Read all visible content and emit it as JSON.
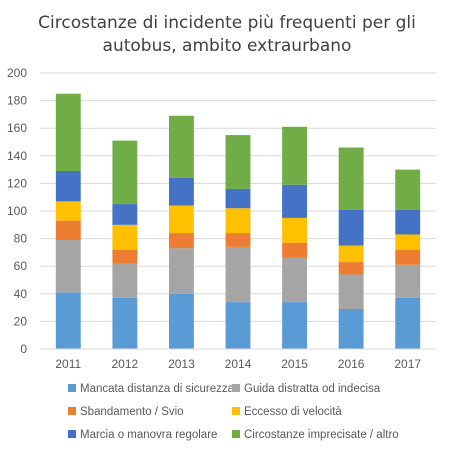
{
  "chart_data": {
    "type": "bar",
    "stacked": true,
    "title": "Circostanze di incidente più frequenti per gli autobus, ambito extraurbano",
    "title_lines": [
      "Circostanze di incidente più frequenti per gli",
      "autobus, ambito extraurbano"
    ],
    "xlabel": "",
    "ylabel": "",
    "ylim": [
      0,
      200
    ],
    "yticks": [
      0,
      20,
      40,
      60,
      80,
      100,
      120,
      140,
      160,
      180,
      200
    ],
    "grid": true,
    "legend_position": "bottom",
    "categories": [
      "2011",
      "2012",
      "2013",
      "2014",
      "2015",
      "2016",
      "2017"
    ],
    "series": [
      {
        "name": "Mancata distanza di sicurezza",
        "color": "#5B9BD5",
        "values": [
          41,
          37,
          40,
          34,
          34,
          29,
          37
        ]
      },
      {
        "name": "Guida distratta od indecisa",
        "color": "#A5A5A5",
        "values": [
          38,
          25,
          33,
          40,
          32,
          25,
          24
        ]
      },
      {
        "name": "Sbandamento / Svio",
        "color": "#ED7D31",
        "values": [
          14,
          10,
          11,
          10,
          11,
          9,
          11
        ]
      },
      {
        "name": "Eccesso di velocità",
        "color": "#FFC000",
        "values": [
          14,
          18,
          20,
          18,
          18,
          12,
          11
        ]
      },
      {
        "name": "Marcia o manovra regolare",
        "color": "#4472C4",
        "values": [
          22,
          15,
          20,
          14,
          24,
          26,
          18
        ]
      },
      {
        "name": "Circostanze imprecisate / altro",
        "color": "#70AD47",
        "values": [
          56,
          46,
          45,
          39,
          42,
          45,
          29
        ]
      }
    ]
  }
}
